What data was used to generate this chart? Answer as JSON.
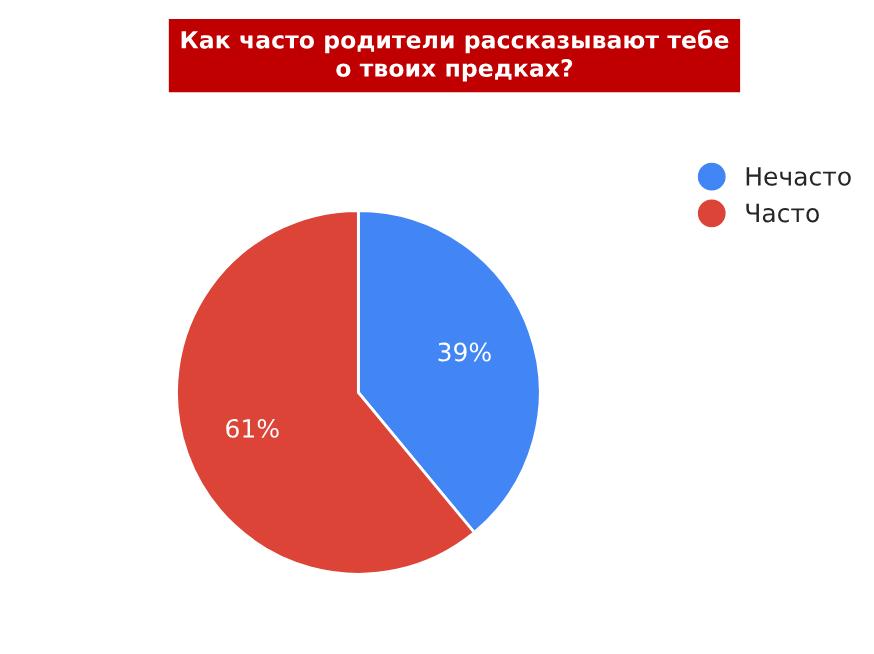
{
  "chart_data": {
    "type": "pie",
    "title": "Как часто родители рассказывают тебе\nо твоих предках?",
    "categories": [
      "Нечасто",
      "Часто"
    ],
    "values": [
      39,
      61
    ],
    "colors": [
      "#4285f4",
      "#db4437"
    ],
    "value_labels": [
      "39%",
      "61%"
    ],
    "legend": "right"
  }
}
